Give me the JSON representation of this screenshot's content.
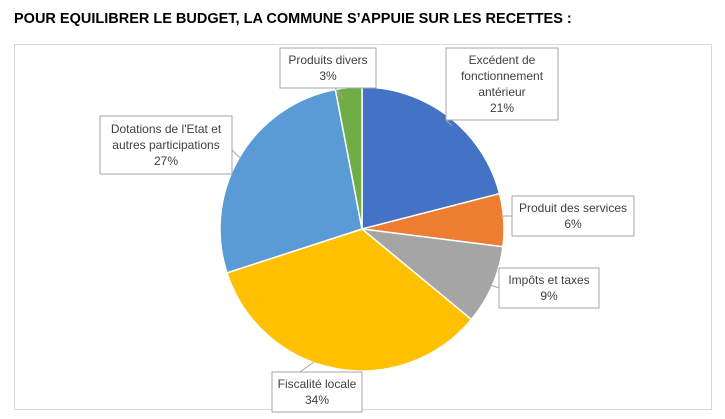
{
  "page_title": "POUR EQUILIBRER LE BUDGET, LA COMMUNE S’APPUIE SUR LES RECETTES :",
  "chart_data": {
    "type": "pie",
    "title": "",
    "start_angle_deg": 0,
    "direction": "clockwise",
    "slices": [
      {
        "label": [
          "Excédent de",
          "fonctionnement",
          "antérieur"
        ],
        "pct_text": "21%",
        "value": 21,
        "color": "#4472C4"
      },
      {
        "label": [
          "Produit des services"
        ],
        "pct_text": "6%",
        "value": 6,
        "color": "#ED7D31"
      },
      {
        "label": [
          "Impôts et taxes"
        ],
        "pct_text": "9%",
        "value": 9,
        "color": "#A5A5A5"
      },
      {
        "label": [
          "Fiscalité locale"
        ],
        "pct_text": "34%",
        "value": 34,
        "color": "#FFC000"
      },
      {
        "label": [
          "Dotations de l'Etat et",
          "autres participations"
        ],
        "pct_text": "27%",
        "value": 27,
        "color": "#5B9BD5"
      },
      {
        "label": [
          "Produits divers"
        ],
        "pct_text": "3%",
        "value": 3,
        "color": "#70AD47"
      }
    ]
  }
}
